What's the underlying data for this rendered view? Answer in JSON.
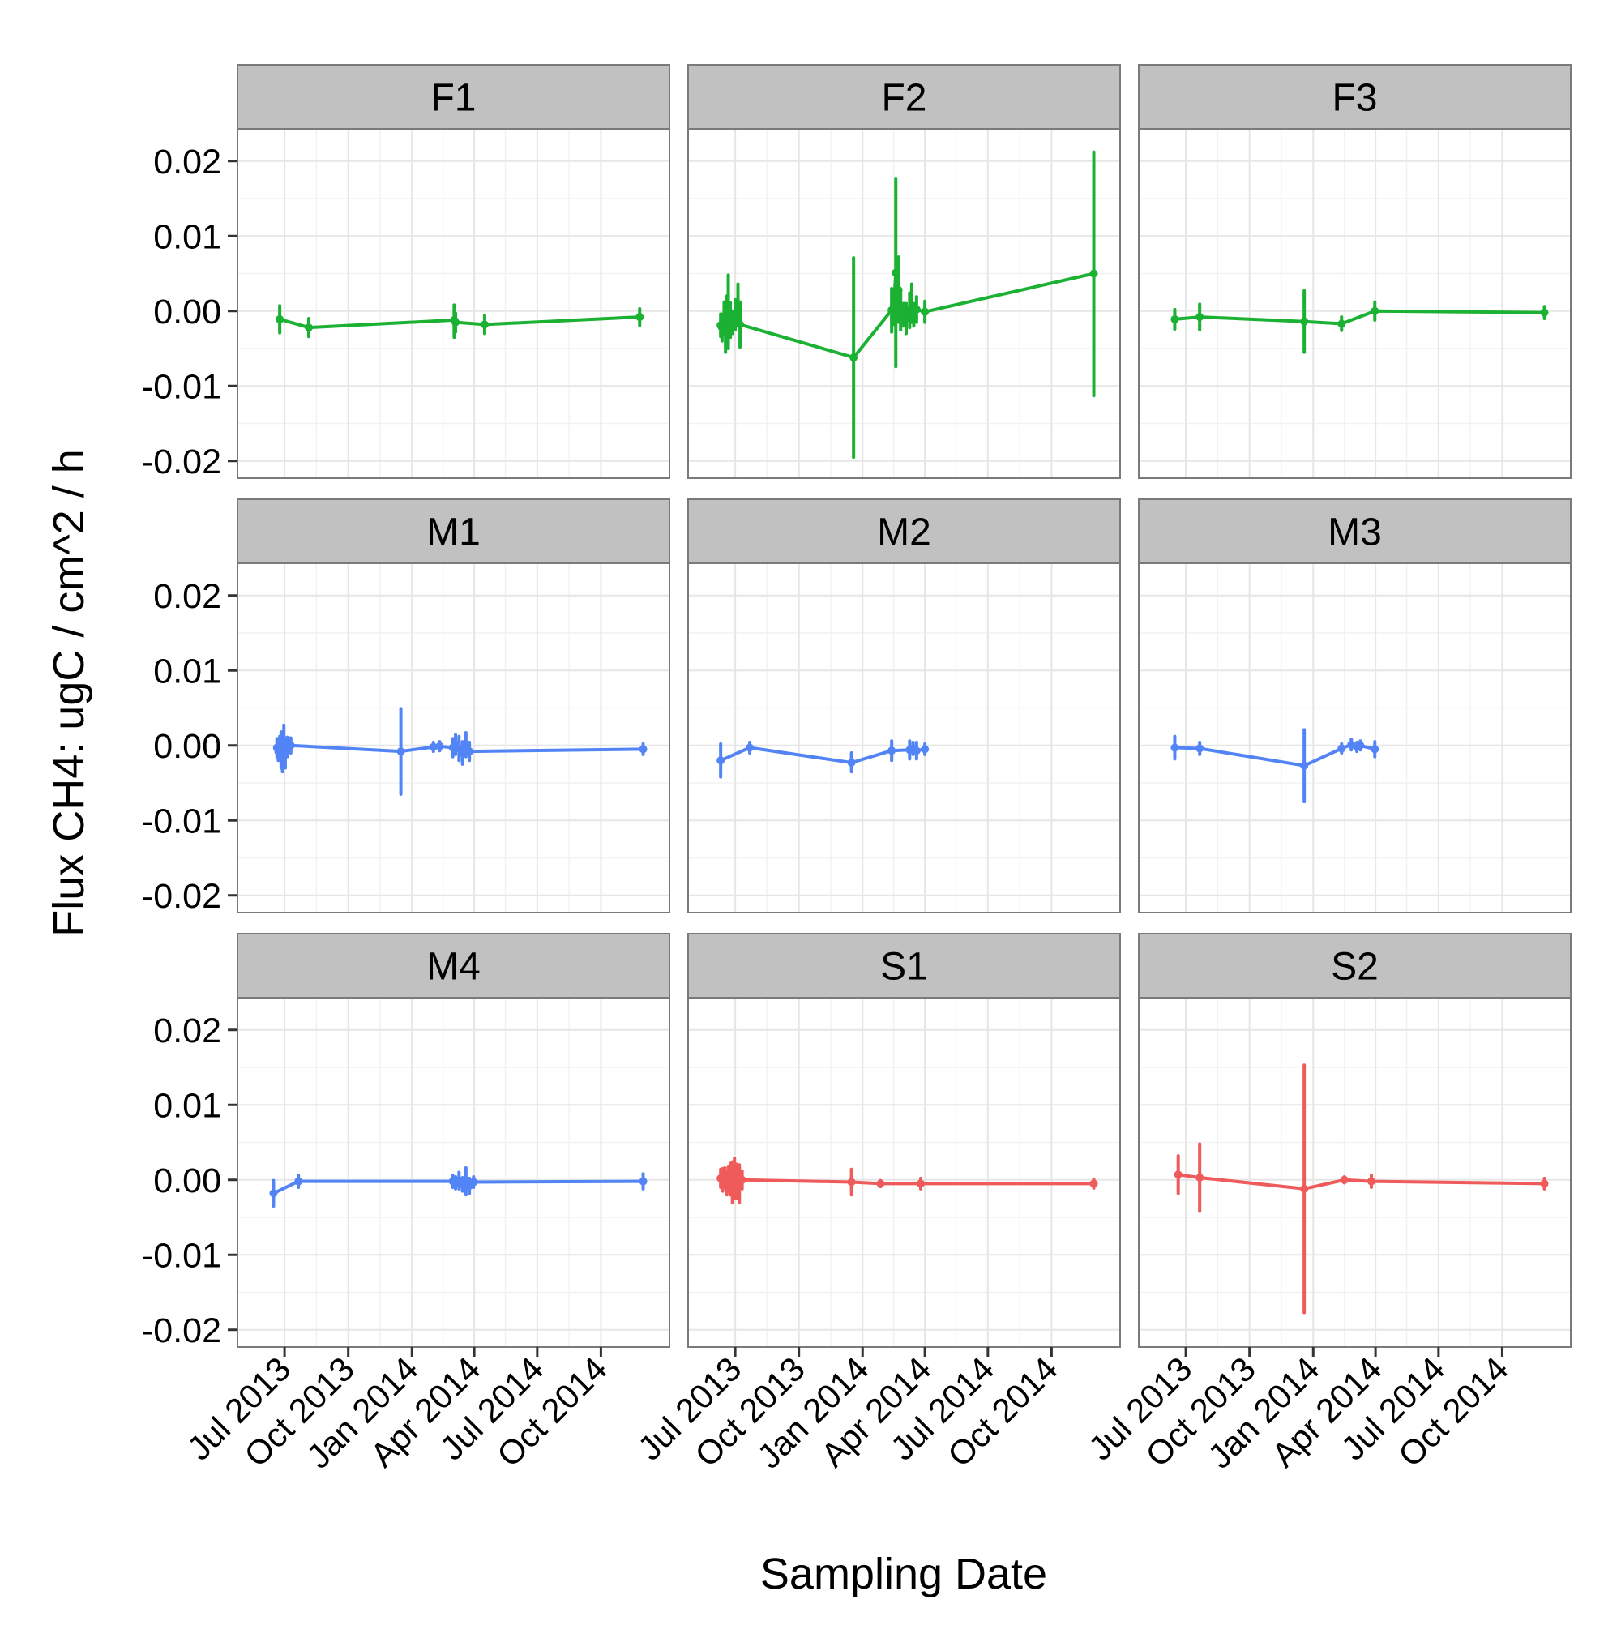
{
  "chart_data": {
    "type": "line",
    "xlabel": "Sampling Date",
    "ylabel": "Flux CH4: ugC / cm^2 / h",
    "xlim": [
      "2013-05-01",
      "2015-01-01"
    ],
    "ylim": [
      -0.021,
      0.023
    ],
    "y_ticks": [
      -0.02,
      -0.01,
      0.0,
      0.01,
      0.02
    ],
    "y_tick_labels": [
      "-0.02",
      "-0.01",
      "0.00",
      "0.01",
      "0.02"
    ],
    "x_ticks": [
      "2013-07-01",
      "2013-10-01",
      "2014-01-01",
      "2014-04-01",
      "2014-07-01",
      "2014-10-01"
    ],
    "x_tick_labels": [
      "Jul 2013",
      "Oct 2013",
      "Jan 2014",
      "Apr 2014",
      "Jul 2014",
      "Oct 2014"
    ],
    "grid": true,
    "layout": "facet-grid 3x3",
    "colors": {
      "F": "#1bb133",
      "M": "#5284f5",
      "S": "#ef5a5a",
      "strip": "#c1c1c1",
      "panel_bg": "#ffffff",
      "grid": "#e6e6e6",
      "panel_border": "#7a7a7a"
    },
    "panels": [
      {
        "label": "F1",
        "color": "#1bb133",
        "points": [
          {
            "x": "2013-06-24",
            "y": -0.0011,
            "lo": -0.0029,
            "hi": 0.0007
          },
          {
            "x": "2013-08-05",
            "y": -0.0022,
            "lo": -0.0034,
            "hi": -0.001
          },
          {
            "x": "2014-03-03",
            "y": -0.0012,
            "lo": -0.0035,
            "hi": 0.0008
          },
          {
            "x": "2014-03-05",
            "y": -0.0015,
            "lo": -0.0028,
            "hi": -0.0003
          },
          {
            "x": "2014-04-16",
            "y": -0.0018,
            "lo": -0.003,
            "hi": -0.0006
          },
          {
            "x": "2014-11-26",
            "y": -0.0008,
            "lo": -0.0019,
            "hi": 0.0003
          }
        ]
      },
      {
        "label": "F2",
        "color": "#1bb133",
        "points": [
          {
            "x": "2013-06-10",
            "y": -0.0019,
            "lo": -0.0034,
            "hi": -0.0004
          },
          {
            "x": "2013-06-12",
            "y": -0.0022,
            "lo": -0.004,
            "hi": -0.0004
          },
          {
            "x": "2013-06-15",
            "y": -0.0009,
            "lo": -0.003,
            "hi": 0.0012
          },
          {
            "x": "2013-06-17",
            "y": -0.0025,
            "lo": -0.0055,
            "hi": 0.0005
          },
          {
            "x": "2013-06-19",
            "y": -0.0004,
            "lo": -0.0028,
            "hi": 0.002
          },
          {
            "x": "2013-06-21",
            "y": -0.0001,
            "lo": -0.005,
            "hi": 0.0048
          },
          {
            "x": "2013-06-24",
            "y": -0.0012,
            "lo": -0.0035,
            "hi": 0.0011
          },
          {
            "x": "2013-06-27",
            "y": -0.0015,
            "lo": -0.003,
            "hi": 0.0
          },
          {
            "x": "2013-07-01",
            "y": -0.0005,
            "lo": -0.0025,
            "hi": 0.0015
          },
          {
            "x": "2013-07-05",
            "y": 0.0008,
            "lo": -0.002,
            "hi": 0.0036
          },
          {
            "x": "2013-07-08",
            "y": -0.0018,
            "lo": -0.0048,
            "hi": 0.0012
          },
          {
            "x": "2013-12-19",
            "y": -0.0062,
            "lo": -0.0195,
            "hi": 0.0071
          },
          {
            "x": "2014-02-12",
            "y": 0.0001,
            "lo": -0.0028,
            "hi": 0.003
          },
          {
            "x": "2014-02-15",
            "y": 0.0005,
            "lo": -0.0018,
            "hi": 0.0028
          },
          {
            "x": "2014-02-18",
            "y": 0.0051,
            "lo": -0.0074,
            "hi": 0.0176
          },
          {
            "x": "2014-02-22",
            "y": 0.0028,
            "lo": -0.0015,
            "hi": 0.0072
          },
          {
            "x": "2014-02-25",
            "y": 0.0002,
            "lo": -0.0025,
            "hi": 0.0029
          },
          {
            "x": "2014-03-01",
            "y": -0.0005,
            "lo": -0.002,
            "hi": 0.001
          },
          {
            "x": "2014-03-05",
            "y": -0.001,
            "lo": -0.003,
            "hi": 0.001
          },
          {
            "x": "2014-03-10",
            "y": 0.0001,
            "lo": -0.0022,
            "hi": 0.0024
          },
          {
            "x": "2014-03-13",
            "y": 0.0005,
            "lo": -0.0015,
            "hi": 0.0036
          },
          {
            "x": "2014-03-16",
            "y": -0.0005,
            "lo": -0.002,
            "hi": 0.001
          },
          {
            "x": "2014-03-20",
            "y": 0.0002,
            "lo": -0.0015,
            "hi": 0.0019
          },
          {
            "x": "2014-04-01",
            "y": -0.0001,
            "lo": -0.0015,
            "hi": 0.0013
          },
          {
            "x": "2014-12-01",
            "y": 0.005,
            "lo": -0.0113,
            "hi": 0.0212
          }
        ]
      },
      {
        "label": "F3",
        "color": "#1bb133",
        "points": [
          {
            "x": "2013-06-15",
            "y": -0.0011,
            "lo": -0.0024,
            "hi": 0.0002
          },
          {
            "x": "2013-07-21",
            "y": -0.0008,
            "lo": -0.0025,
            "hi": 0.0009
          },
          {
            "x": "2013-12-19",
            "y": -0.0014,
            "lo": -0.0055,
            "hi": 0.0027
          },
          {
            "x": "2014-02-11",
            "y": -0.0017,
            "lo": -0.0026,
            "hi": -0.0008
          },
          {
            "x": "2014-03-31",
            "y": 0.0,
            "lo": -0.0012,
            "hi": 0.0012
          },
          {
            "x": "2014-12-01",
            "y": -0.0002,
            "lo": -0.001,
            "hi": 0.0006
          }
        ]
      },
      {
        "label": "M1",
        "color": "#5284f5",
        "points": [
          {
            "x": "2013-06-20",
            "y": -0.0003,
            "lo": -0.0015,
            "hi": 0.0009
          },
          {
            "x": "2013-06-22",
            "y": -0.0008,
            "lo": -0.002,
            "hi": 0.0005
          },
          {
            "x": "2013-06-24",
            "y": 0.0,
            "lo": -0.0012,
            "hi": 0.0012
          },
          {
            "x": "2013-06-26",
            "y": -0.0006,
            "lo": -0.003,
            "hi": 0.0018
          },
          {
            "x": "2013-06-28",
            "y": -0.0015,
            "lo": -0.0035,
            "hi": 0.0005
          },
          {
            "x": "2013-06-30",
            "y": 0.0002,
            "lo": -0.0025,
            "hi": 0.0027
          },
          {
            "x": "2013-07-02",
            "y": -0.001,
            "lo": -0.003,
            "hi": 0.001
          },
          {
            "x": "2013-07-05",
            "y": -0.0002,
            "lo": -0.0015,
            "hi": 0.0011
          },
          {
            "x": "2013-07-10",
            "y": 0.0,
            "lo": -0.001,
            "hi": 0.001
          },
          {
            "x": "2013-12-16",
            "y": -0.0008,
            "lo": -0.0065,
            "hi": 0.0049
          },
          {
            "x": "2014-02-01",
            "y": -0.0002,
            "lo": -0.0008,
            "hi": 0.0004
          },
          {
            "x": "2014-02-10",
            "y": -0.0001,
            "lo": -0.0007,
            "hi": 0.0005
          },
          {
            "x": "2014-03-01",
            "y": -0.0003,
            "lo": -0.0015,
            "hi": 0.0009
          },
          {
            "x": "2014-03-05",
            "y": 0.0001,
            "lo": -0.0012,
            "hi": 0.0014
          },
          {
            "x": "2014-03-10",
            "y": -0.0004,
            "lo": -0.002,
            "hi": 0.0012
          },
          {
            "x": "2014-03-15",
            "y": -0.001,
            "lo": -0.0025,
            "hi": 0.0005
          },
          {
            "x": "2014-03-20",
            "y": 0.0001,
            "lo": -0.0015,
            "hi": 0.0017
          },
          {
            "x": "2014-03-25",
            "y": -0.0008,
            "lo": -0.002,
            "hi": 0.0004
          },
          {
            "x": "2014-12-01",
            "y": -0.0005,
            "lo": -0.0012,
            "hi": 0.0002
          }
        ]
      },
      {
        "label": "M2",
        "color": "#5284f5",
        "points": [
          {
            "x": "2013-06-10",
            "y": -0.002,
            "lo": -0.0042,
            "hi": 0.0002
          },
          {
            "x": "2013-07-22",
            "y": -0.0003,
            "lo": -0.001,
            "hi": 0.0004
          },
          {
            "x": "2013-12-16",
            "y": -0.0023,
            "lo": -0.0035,
            "hi": -0.001
          },
          {
            "x": "2014-02-12",
            "y": -0.0007,
            "lo": -0.002,
            "hi": 0.0006
          },
          {
            "x": "2014-03-10",
            "y": -0.0006,
            "lo": -0.0018,
            "hi": 0.0006
          },
          {
            "x": "2014-03-15",
            "y": -0.0004,
            "lo": -0.0012,
            "hi": 0.0004
          },
          {
            "x": "2014-03-20",
            "y": -0.0007,
            "lo": -0.0018,
            "hi": 0.0004
          },
          {
            "x": "2014-04-01",
            "y": -0.0005,
            "lo": -0.0012,
            "hi": 0.0002
          }
        ]
      },
      {
        "label": "M3",
        "color": "#5284f5",
        "points": [
          {
            "x": "2013-06-15",
            "y": -0.0003,
            "lo": -0.0018,
            "hi": 0.0012
          },
          {
            "x": "2013-07-21",
            "y": -0.0004,
            "lo": -0.0012,
            "hi": 0.0004
          },
          {
            "x": "2013-12-19",
            "y": -0.0027,
            "lo": -0.0075,
            "hi": 0.0021
          },
          {
            "x": "2014-02-11",
            "y": -0.0004,
            "lo": -0.001,
            "hi": 0.0002
          },
          {
            "x": "2014-02-25",
            "y": 0.0001,
            "lo": -0.0006,
            "hi": 0.0008
          },
          {
            "x": "2014-03-05",
            "y": -0.0002,
            "lo": -0.0008,
            "hi": 0.0004
          },
          {
            "x": "2014-03-10",
            "y": 0.0,
            "lo": -0.0006,
            "hi": 0.0006
          },
          {
            "x": "2014-03-31",
            "y": -0.0005,
            "lo": -0.0015,
            "hi": 0.0005
          }
        ]
      },
      {
        "label": "M4",
        "color": "#5284f5",
        "points": [
          {
            "x": "2013-06-15",
            "y": -0.0018,
            "lo": -0.0035,
            "hi": -0.0001
          },
          {
            "x": "2013-07-21",
            "y": -0.0002,
            "lo": -0.001,
            "hi": 0.0006
          },
          {
            "x": "2014-03-01",
            "y": -0.0002,
            "lo": -0.001,
            "hi": 0.0006
          },
          {
            "x": "2014-03-05",
            "y": -0.0004,
            "lo": -0.0012,
            "hi": 0.0004
          },
          {
            "x": "2014-03-10",
            "y": -0.0001,
            "lo": -0.0012,
            "hi": 0.001
          },
          {
            "x": "2014-03-15",
            "y": -0.0006,
            "lo": -0.0015,
            "hi": 0.0003
          },
          {
            "x": "2014-03-20",
            "y": -0.0002,
            "lo": -0.002,
            "hi": 0.0016
          },
          {
            "x": "2014-03-25",
            "y": -0.0008,
            "lo": -0.0018,
            "hi": 0.0002
          },
          {
            "x": "2014-03-31",
            "y": -0.0003,
            "lo": -0.001,
            "hi": 0.0004
          },
          {
            "x": "2014-12-01",
            "y": -0.0002,
            "lo": -0.0012,
            "hi": 0.0008
          }
        ]
      },
      {
        "label": "S1",
        "color": "#ef5a5a",
        "points": [
          {
            "x": "2013-06-10",
            "y": 0.0002,
            "lo": -0.001,
            "hi": 0.0014
          },
          {
            "x": "2013-06-13",
            "y": 0.0,
            "lo": -0.0015,
            "hi": 0.0015
          },
          {
            "x": "2013-06-16",
            "y": 0.0003,
            "lo": -0.001,
            "hi": 0.0016
          },
          {
            "x": "2013-06-19",
            "y": -0.0005,
            "lo": -0.002,
            "hi": 0.001
          },
          {
            "x": "2013-06-21",
            "y": 0.0001,
            "lo": -0.0015,
            "hi": 0.0017
          },
          {
            "x": "2013-06-24",
            "y": 0.0001,
            "lo": -0.002,
            "hi": 0.0022
          },
          {
            "x": "2013-06-27",
            "y": -0.0003,
            "lo": -0.003,
            "hi": 0.0024
          },
          {
            "x": "2013-06-30",
            "y": 0.0002,
            "lo": -0.0025,
            "hi": 0.0029
          },
          {
            "x": "2013-07-03",
            "y": -0.0002,
            "lo": -0.0025,
            "hi": 0.0021
          },
          {
            "x": "2013-07-07",
            "y": -0.0002,
            "lo": -0.003,
            "hi": 0.002
          },
          {
            "x": "2013-07-11",
            "y": 0.0,
            "lo": -0.0012,
            "hi": 0.0012
          },
          {
            "x": "2013-12-16",
            "y": -0.0003,
            "lo": -0.002,
            "hi": 0.0014
          },
          {
            "x": "2014-01-27",
            "y": -0.0005,
            "lo": -0.0009,
            "hi": -0.0001
          },
          {
            "x": "2014-03-26",
            "y": -0.0005,
            "lo": -0.0012,
            "hi": 0.0002
          },
          {
            "x": "2014-12-01",
            "y": -0.0005,
            "lo": -0.0011,
            "hi": 0.0001
          }
        ]
      },
      {
        "label": "S2",
        "color": "#ef5a5a",
        "points": [
          {
            "x": "2013-06-20",
            "y": 0.0007,
            "lo": -0.0018,
            "hi": 0.0032
          },
          {
            "x": "2013-07-21",
            "y": 0.0003,
            "lo": -0.0042,
            "hi": 0.0048
          },
          {
            "x": "2013-12-19",
            "y": -0.0012,
            "lo": -0.0177,
            "hi": 0.0153
          },
          {
            "x": "2014-02-15",
            "y": 0.0,
            "lo": -0.0004,
            "hi": 0.0004
          },
          {
            "x": "2014-03-26",
            "y": -0.0002,
            "lo": -0.001,
            "hi": 0.0006
          },
          {
            "x": "2014-12-01",
            "y": -0.0005,
            "lo": -0.0012,
            "hi": 0.0002
          }
        ]
      }
    ]
  }
}
